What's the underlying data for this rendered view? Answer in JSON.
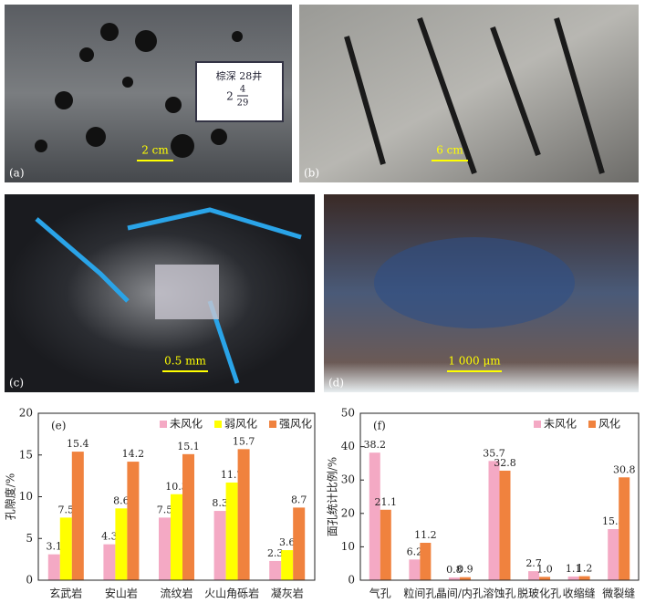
{
  "panels": [
    {
      "label": "(a)",
      "scale": "2 cm",
      "card": [
        "棕深 28井",
        "2",
        "4",
        "29"
      ]
    },
    {
      "label": "(b)",
      "scale": "6 cm"
    },
    {
      "label": "(c)",
      "scale": "0.5 mm"
    },
    {
      "label": "(d)",
      "scale": "1 000 μm"
    }
  ],
  "chart_data": [
    {
      "type": "bar",
      "label": "(e)",
      "y_label": "孔隙度/%",
      "categories": [
        "玄武岩",
        "安山岩",
        "流纹岩",
        "火山角砾岩",
        "凝灰岩"
      ],
      "series": [
        {
          "name": "未风化",
          "color": "#f4a9c4",
          "values": [
            3.1,
            4.3,
            7.5,
            8.3,
            2.3
          ]
        },
        {
          "name": "弱风化",
          "color": "#ffff00",
          "values": [
            7.5,
            8.6,
            10.3,
            11.7,
            3.6
          ]
        },
        {
          "name": "强风化",
          "color": "#f0823e",
          "values": [
            15.4,
            14.2,
            15.1,
            15.7,
            8.7
          ]
        }
      ],
      "ylim": [
        0,
        20
      ],
      "yticks": [
        0,
        5,
        10,
        15,
        20
      ]
    },
    {
      "type": "bar",
      "label": "(f)",
      "y_label": "面孔统计比例/%",
      "categories": [
        "气孔",
        "粒间孔",
        "晶间/内孔",
        "溶蚀孔",
        "脱玻化孔",
        "收缩缝",
        "微裂缝"
      ],
      "series": [
        {
          "name": "未风化",
          "color": "#f4a9c4",
          "values": [
            38.2,
            6.2,
            0.8,
            35.7,
            2.7,
            1.1,
            15.3
          ]
        },
        {
          "name": "风化",
          "color": "#f0823e",
          "values": [
            21.1,
            11.2,
            0.9,
            32.8,
            1.0,
            1.2,
            30.8
          ],
          "value_labels": [
            "21.1",
            "11.2",
            "0.9",
            "32.8",
            "1.0",
            "1.2",
            "30.8"
          ]
        }
      ],
      "ylim": [
        0,
        50
      ],
      "yticks": [
        0,
        10,
        20,
        30,
        40,
        50
      ]
    }
  ]
}
